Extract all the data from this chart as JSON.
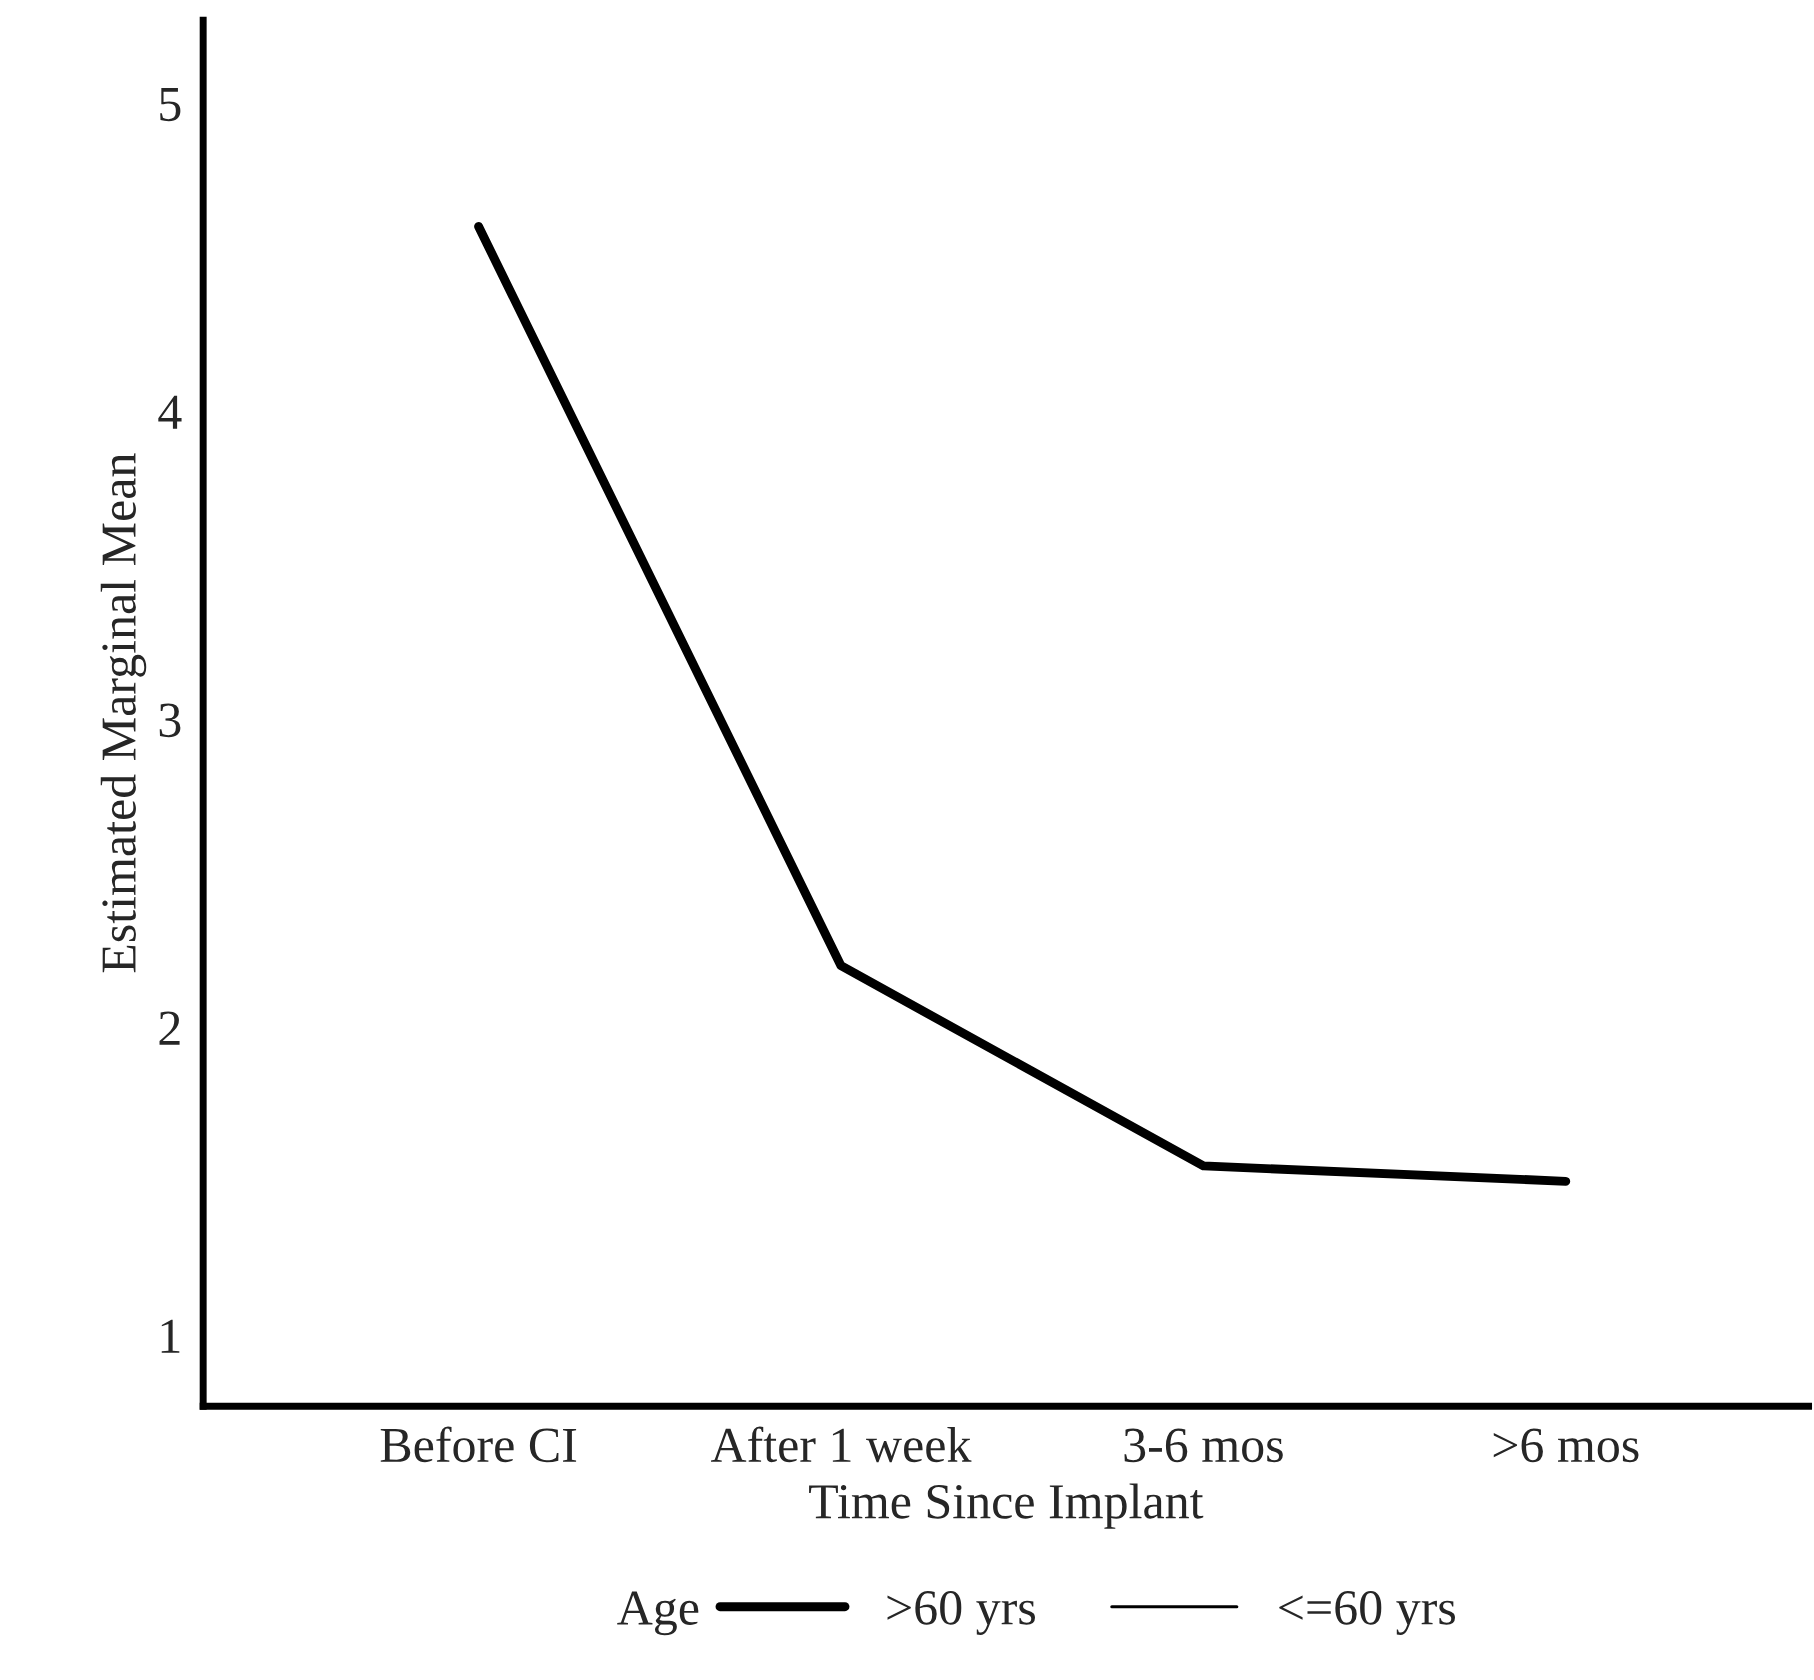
{
  "chart_data": {
    "type": "line",
    "xlabel": "Time Since Implant",
    "ylabel": "Estimated Marginal Mean",
    "legend_title": "Age",
    "categories": [
      "Before CI",
      "After 1 week",
      "3-6 mos",
      ">6 mos"
    ],
    "series": [
      {
        "name": ">60 yrs",
        "color": "#000000",
        "values": [
          4.6,
          2.2,
          1.55,
          1.5
        ]
      },
      {
        "name": "<=60 yrs",
        "color": "#000000",
        "values": [
          null,
          null,
          null,
          null
        ]
      }
    ],
    "ylim": [
      0.77,
      5.27
    ],
    "yticks": [
      1,
      2,
      3,
      4,
      5
    ],
    "grid": false,
    "legend": "bottom",
    "marker": "none",
    "line_style": "solid"
  }
}
